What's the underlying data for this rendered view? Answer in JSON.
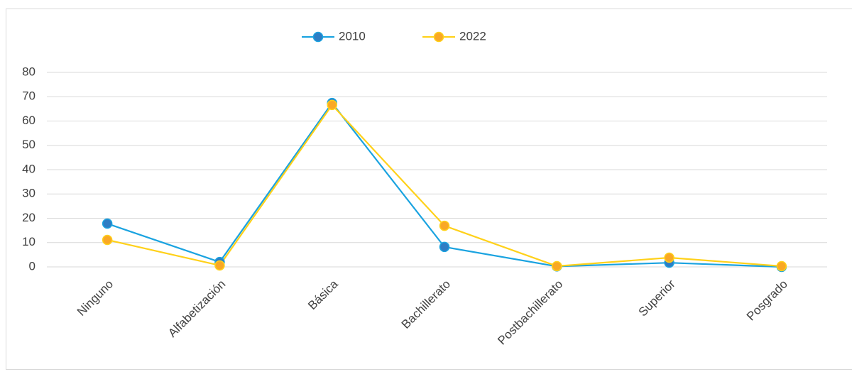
{
  "chart_data": {
    "type": "line",
    "categories": [
      "Ninguno",
      "Alfabetización",
      "Básica",
      "Bachillerato",
      "Postbachillerato",
      "Superior",
      "Posgrado"
    ],
    "series": [
      {
        "name": "2010",
        "color": "#1aa3e0",
        "marker_color": "#2e7dc4",
        "values": [
          17.8,
          2.0,
          67.4,
          8.2,
          0.2,
          1.7,
          0.0
        ]
      },
      {
        "name": "2022",
        "color": "#ffd11a",
        "marker_color": "#f9a825",
        "values": [
          11.1,
          0.6,
          66.6,
          16.9,
          0.3,
          3.8,
          0.3
        ]
      }
    ],
    "ylim": [
      0,
      80
    ],
    "yticks": [
      0,
      10,
      20,
      30,
      40,
      50,
      60,
      70,
      80
    ],
    "grid": true,
    "legend": "top"
  }
}
